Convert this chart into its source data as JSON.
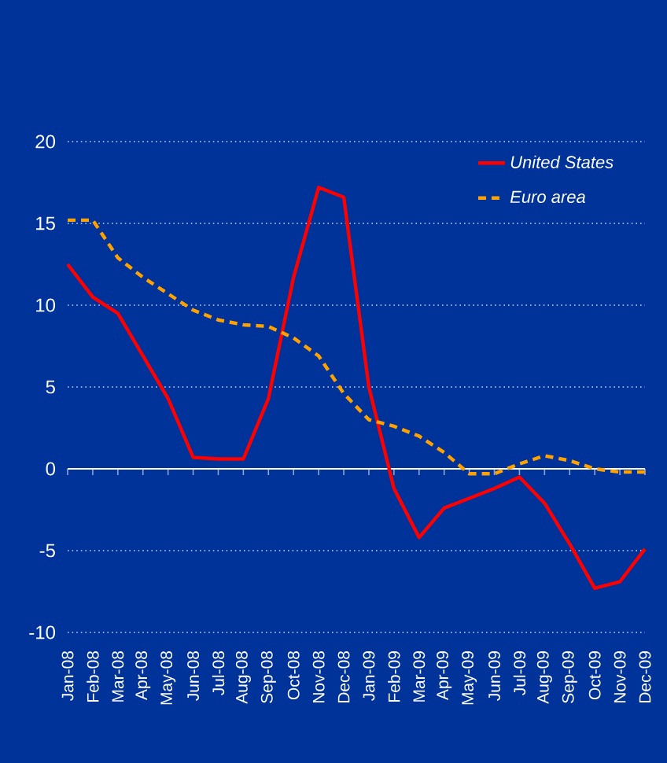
{
  "chart_data": {
    "type": "line",
    "categories": [
      "Jan-08",
      "Feb-08",
      "Mar-08",
      "Apr-08",
      "May-08",
      "Jun-08",
      "Jul-08",
      "Aug-08",
      "Sep-08",
      "Oct-08",
      "Nov-08",
      "Dec-08",
      "Jan-09",
      "Feb-09",
      "Mar-09",
      "Apr-09",
      "May-09",
      "Jun-09",
      "Jul-09",
      "Aug-09",
      "Sep-09",
      "Oct-09",
      "Nov-09",
      "Dec-09"
    ],
    "series": [
      {
        "name": "United States",
        "color": "#ff0000",
        "line_style": "solid",
        "values": [
          12.5,
          10.5,
          9.5,
          6.9,
          4.3,
          0.7,
          0.6,
          0.6,
          4.3,
          11.7,
          17.2,
          16.6,
          5.0,
          -1.2,
          -4.2,
          -2.4,
          -1.8,
          -1.2,
          -0.5,
          -2.1,
          -4.6,
          -7.3,
          -6.9,
          -4.9
        ]
      },
      {
        "name": "Euro area",
        "color": "#ffa200",
        "line_style": "dashed",
        "values": [
          15.2,
          15.2,
          12.9,
          11.7,
          10.7,
          9.7,
          9.1,
          8.8,
          8.7,
          8.0,
          6.9,
          4.6,
          3.0,
          2.6,
          2.0,
          1.0,
          -0.3,
          -0.3,
          0.3,
          0.8,
          0.5,
          0.0,
          -0.2,
          -0.2
        ]
      }
    ],
    "ylim": [
      -10,
      20
    ],
    "yticks": [
      -10,
      -5,
      0,
      5,
      10,
      15,
      20
    ],
    "grid": "y",
    "legend": "top right"
  }
}
